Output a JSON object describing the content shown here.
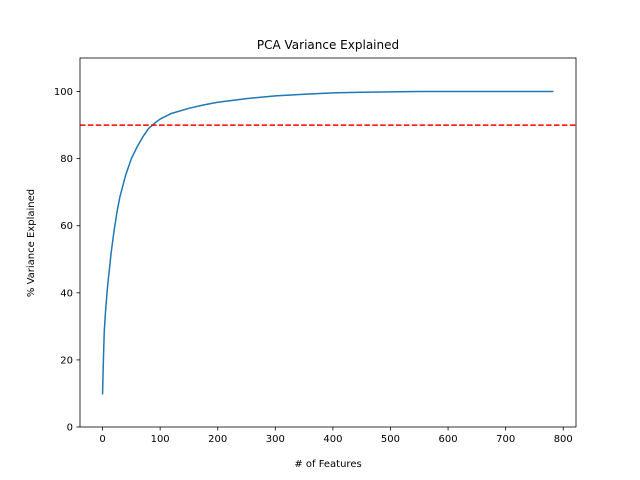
{
  "chart_data": {
    "type": "line",
    "title": "PCA Variance Explained",
    "xlabel": "# of Features",
    "ylabel": "% Variance Explained",
    "xlim": [
      -39.15,
      822.15
    ],
    "ylim": [
      0,
      110
    ],
    "xticks": [
      0,
      100,
      200,
      300,
      400,
      500,
      600,
      700,
      800
    ],
    "yticks": [
      0,
      20,
      40,
      60,
      80,
      100
    ],
    "xtick_labels": [
      "0",
      "100",
      "200",
      "300",
      "400",
      "500",
      "600",
      "700",
      "800"
    ],
    "ytick_labels": [
      "0",
      "20",
      "40",
      "60",
      "80",
      "100"
    ],
    "grid": false,
    "series": [
      {
        "color": "#1f77b4",
        "style": "solid",
        "x": [
          0,
          1,
          2,
          3,
          5,
          8,
          10,
          15,
          20,
          25,
          30,
          40,
          50,
          60,
          70,
          80,
          90,
          100,
          120,
          150,
          175,
          200,
          250,
          300,
          350,
          400,
          450,
          500,
          550,
          600,
          650,
          700,
          750,
          783
        ],
        "y": [
          9.7,
          16.8,
          23.0,
          28.5,
          34.0,
          40.5,
          44.0,
          52.0,
          58.5,
          64.0,
          68.5,
          75.0,
          80.0,
          83.5,
          86.5,
          89.0,
          90.5,
          91.8,
          93.5,
          95.0,
          96.0,
          96.8,
          97.9,
          98.7,
          99.2,
          99.6,
          99.8,
          99.9,
          100.0,
          100.0,
          100.0,
          100.0,
          100.0,
          100.0
        ]
      }
    ],
    "hlines": [
      {
        "y": 90,
        "color": "#ff0000",
        "style": "dashed"
      }
    ]
  }
}
